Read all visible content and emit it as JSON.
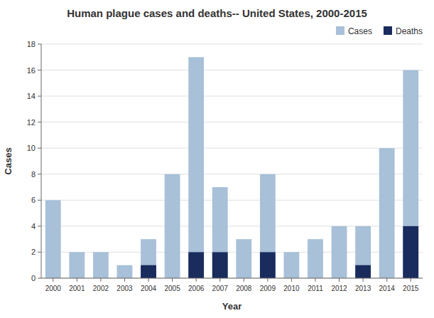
{
  "chart_data": {
    "type": "bar",
    "title": "Human plague cases and deaths-- United States, 2000-2015",
    "x_label": "Year",
    "y_label": "Cases",
    "categories": [
      2000,
      2001,
      2002,
      2003,
      2004,
      2005,
      2006,
      2007,
      2008,
      2009,
      2010,
      2011,
      2012,
      2013,
      2014,
      2015
    ],
    "series": [
      {
        "name": "Cases",
        "color": "#a8c0d8",
        "values": [
          6,
          2,
          2,
          1,
          3,
          8,
          17,
          7,
          3,
          8,
          2,
          3,
          4,
          4,
          10,
          16
        ]
      },
      {
        "name": "Deaths",
        "color": "#1a2b5e",
        "values": [
          0,
          0,
          0,
          0,
          1,
          0,
          2,
          2,
          0,
          2,
          0,
          0,
          0,
          1,
          0,
          4
        ]
      }
    ],
    "ylim": [
      0,
      18
    ],
    "yticks": [
      0,
      2,
      4,
      6,
      8,
      10,
      12,
      14,
      16,
      18
    ],
    "grid": true,
    "legend": "upper right"
  }
}
